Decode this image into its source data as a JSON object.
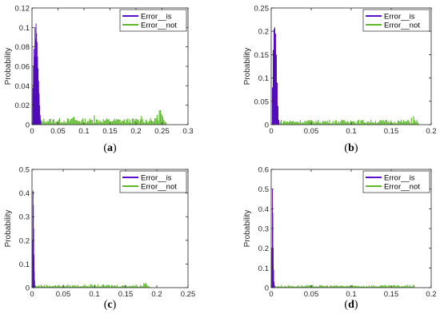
{
  "chart_data": [
    {
      "type": "bar",
      "caption_pre": "(",
      "caption_letter": "a",
      "caption_post": ")",
      "ylabel": "Probability",
      "xlim": [
        0,
        0.3
      ],
      "ylim": [
        0,
        0.12
      ],
      "xticks": [
        "0",
        "0.05",
        "0.1",
        "0.15",
        "0.2",
        "0.25",
        "0.3"
      ],
      "yticks": [
        "0",
        "0.02",
        "0.04",
        "0.06",
        "0.08",
        "0.1",
        "0.12"
      ],
      "legend_position": "top-right",
      "series": [
        {
          "name": "Error__is",
          "color": "#5a10c8",
          "x": [
            0.001,
            0.002,
            0.003,
            0.004,
            0.005,
            0.006,
            0.007,
            0.008,
            0.009,
            0.01,
            0.011,
            0.012,
            0.013,
            0.014,
            0.015,
            0.016
          ],
          "values": [
            0.038,
            0.06,
            0.078,
            0.07,
            0.1,
            0.088,
            0.104,
            0.094,
            0.085,
            0.07,
            0.058,
            0.045,
            0.032,
            0.02,
            0.01,
            0.004
          ]
        },
        {
          "name": "Error__not",
          "color": "#5cb82a",
          "x_start": 0.012,
          "x_end": 0.26,
          "baseline": 0.005,
          "peaks": [
            [
              0.08,
              0.011
            ],
            [
              0.12,
              0.01
            ],
            [
              0.21,
              0.01
            ],
            [
              0.24,
              0.012
            ],
            [
              0.246,
              0.021
            ],
            [
              0.25,
              0.014
            ]
          ]
        }
      ]
    },
    {
      "type": "bar",
      "caption_pre": "(",
      "caption_letter": "b",
      "caption_post": ")",
      "ylabel": "Probability",
      "xlim": [
        0,
        0.2
      ],
      "ylim": [
        0,
        0.25
      ],
      "xticks": [
        "0",
        "0.05",
        "0.1",
        "0.15",
        "0.2"
      ],
      "yticks": [
        "0",
        "0.05",
        "0.1",
        "0.15",
        "0.2",
        "0.25"
      ],
      "legend_position": "top-right",
      "series": [
        {
          "name": "Error__is",
          "color": "#5a10c8",
          "x": [
            0.001,
            0.002,
            0.003,
            0.004,
            0.005,
            0.006,
            0.007,
            0.008,
            0.009
          ],
          "values": [
            0.08,
            0.16,
            0.205,
            0.209,
            0.195,
            0.15,
            0.09,
            0.04,
            0.01
          ]
        },
        {
          "name": "Error__not",
          "color": "#5cb82a",
          "x_start": 0.007,
          "x_end": 0.185,
          "baseline": 0.008,
          "peaks": [
            [
              0.1,
              0.011
            ],
            [
              0.175,
              0.016
            ],
            [
              0.178,
              0.018
            ]
          ]
        }
      ]
    },
    {
      "type": "bar",
      "caption_pre": "(",
      "caption_letter": "c",
      "caption_post": ")",
      "ylabel": "Probability",
      "xlim": [
        0,
        0.25
      ],
      "ylim": [
        0,
        0.5
      ],
      "xticks": [
        "0",
        "0.05",
        "0.1",
        "0.15",
        "0.2",
        "0.25"
      ],
      "yticks": [
        "0",
        "0.1",
        "0.2",
        "0.3",
        "0.4",
        "0.5"
      ],
      "legend_position": "top-right",
      "series": [
        {
          "name": "Error__is",
          "color": "#5a10c8",
          "x": [
            0.0005,
            0.001,
            0.0015,
            0.002,
            0.0025,
            0.003,
            0.0035,
            0.004
          ],
          "values": [
            0.2,
            0.41,
            0.35,
            0.25,
            0.14,
            0.07,
            0.03,
            0.008
          ]
        },
        {
          "name": "Error__not",
          "color": "#5cb82a",
          "x_start": 0.004,
          "x_end": 0.19,
          "baseline": 0.01,
          "peaks": [
            [
              0.18,
              0.025
            ],
            [
              0.183,
              0.02
            ]
          ]
        }
      ]
    },
    {
      "type": "bar",
      "caption_pre": "(",
      "caption_letter": "d",
      "caption_post": ")",
      "ylabel": "Probability",
      "xlim": [
        0,
        0.2
      ],
      "ylim": [
        0,
        0.6
      ],
      "xticks": [
        "0",
        "0.05",
        "0.1",
        "0.15",
        "0.2"
      ],
      "yticks": [
        "0",
        "0.1",
        "0.2",
        "0.3",
        "0.4",
        "0.5",
        "0.6"
      ],
      "legend_position": "top-right",
      "series": [
        {
          "name": "Error__is",
          "color": "#5a10c8",
          "x": [
            0.0005,
            0.001,
            0.0015,
            0.002,
            0.0025,
            0.003,
            0.0035
          ],
          "values": [
            0.2,
            0.5,
            0.38,
            0.2,
            0.09,
            0.03,
            0.008
          ]
        },
        {
          "name": "Error__not",
          "color": "#5cb82a",
          "x_start": 0.003,
          "x_end": 0.18,
          "baseline": 0.01,
          "peaks": [
            [
              0.17,
              0.016
            ],
            [
              0.173,
              0.014
            ]
          ]
        }
      ]
    }
  ]
}
